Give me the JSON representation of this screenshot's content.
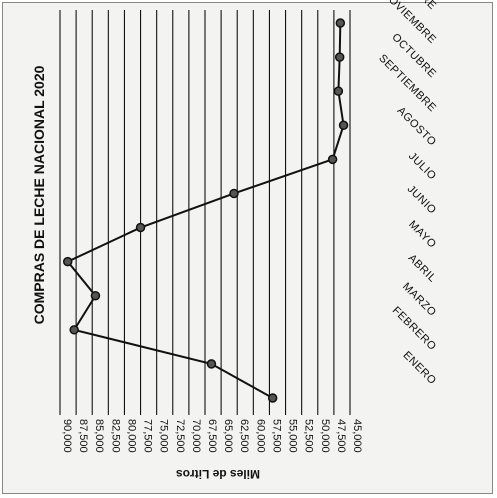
{
  "chart_data": {
    "type": "line",
    "title": "COMPRAS DE LECHE NACIONAL 2020",
    "ylabel": "Miles de Litros",
    "xlabel": "",
    "categories": [
      "ENERO",
      "FEBRERO",
      "MARZO",
      "ABRIL",
      "MAYO",
      "JUNIO",
      "JULIO",
      "AGOSTO",
      "SEPTIEMBRE",
      "OCTUBRE",
      "NOVIEMBRE",
      "DICIEMBRE"
    ],
    "series": [
      {
        "values": [
          57000,
          66500,
          87800,
          84500,
          88800,
          77500,
          63000,
          47700,
          46000,
          46800,
          46600,
          46500
        ]
      }
    ],
    "ylim": [
      45000,
      90000
    ],
    "yticks": [
      "90,000",
      "87,500",
      "85,000",
      "82,500",
      "80,000",
      "77,500",
      "75,000",
      "72,500",
      "70,000",
      "67,500",
      "65,000",
      "62,500",
      "60,000",
      "57,500",
      "55,000",
      "52,500",
      "50,000",
      "47,500",
      "45,000"
    ],
    "grid": true,
    "orientation": "rotated 90° clockwise"
  }
}
